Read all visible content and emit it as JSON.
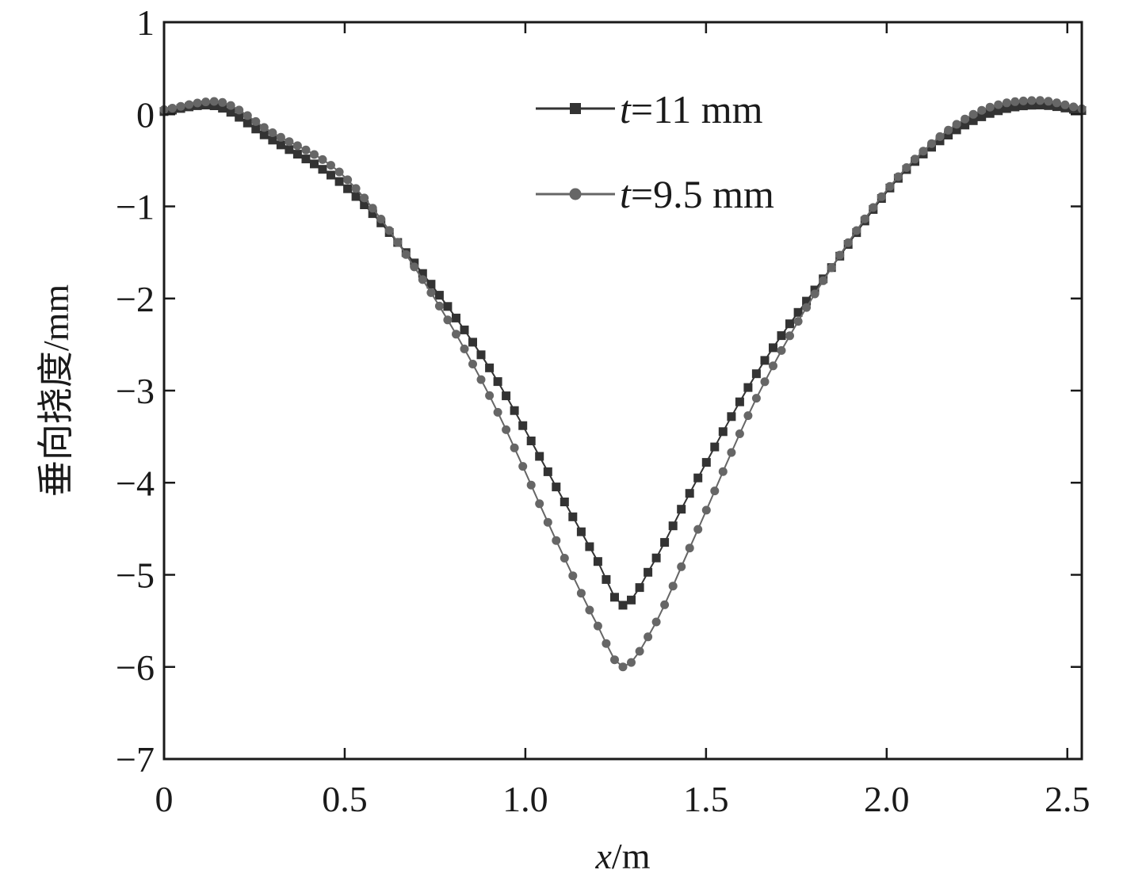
{
  "chart_data": {
    "type": "line",
    "xlabel_var": "x",
    "xlabel_unit": "/m",
    "ylabel": "垂向挠度/mm",
    "xlim": [
      0,
      2.54
    ],
    "ylim": [
      -7,
      1
    ],
    "x_ticks": [
      0,
      0.5,
      1.0,
      1.5,
      2.0,
      2.5
    ],
    "x_tick_labels": [
      "0",
      "0.5",
      "1.0",
      "1.5",
      "2.0",
      "2.5"
    ],
    "y_ticks": [
      1,
      0,
      -1,
      -2,
      -3,
      -4,
      -5,
      -6,
      -7
    ],
    "y_tick_labels": [
      "1",
      "0",
      "−1",
      "−2",
      "−3",
      "−4",
      "−5",
      "−6",
      "−7"
    ],
    "grid": false,
    "legend_position": "top-center",
    "series": [
      {
        "name_var": "t",
        "name_rest": "=11 mm",
        "marker": "square",
        "color": "#333333",
        "x": [
          0,
          0.12,
          0.3,
          0.5,
          0.7,
          0.9,
          1.1,
          1.2,
          1.27,
          1.35,
          1.45,
          1.65,
          1.85,
          2.05,
          2.25,
          2.42,
          2.54
        ],
        "y": [
          0.03,
          0.1,
          -0.28,
          -0.78,
          -1.65,
          -2.75,
          -4.15,
          -4.85,
          -5.33,
          -4.9,
          -4.15,
          -2.75,
          -1.65,
          -0.62,
          -0.05,
          0.1,
          0.04
        ]
      },
      {
        "name_var": "t",
        "name_rest": "=9.5 mm",
        "marker": "circle",
        "color": "#666666",
        "x": [
          0,
          0.14,
          0.3,
          0.5,
          0.7,
          0.9,
          1.1,
          1.2,
          1.27,
          1.35,
          1.45,
          1.65,
          1.85,
          2.05,
          2.25,
          2.42,
          2.54
        ],
        "y": [
          0.05,
          0.14,
          -0.2,
          -0.68,
          -1.7,
          -3.05,
          -4.75,
          -5.55,
          -6.0,
          -5.6,
          -4.75,
          -3.0,
          -1.65,
          -0.6,
          0.02,
          0.15,
          0.06
        ]
      }
    ]
  }
}
